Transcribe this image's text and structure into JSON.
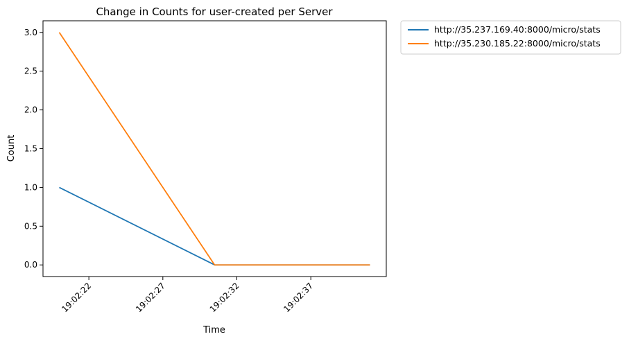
{
  "chart_data": {
    "type": "line",
    "title": "Change in Counts for user-created per Server",
    "xlabel": "Time",
    "ylabel": "Count",
    "x": [
      "19:02:20",
      "19:02:30.5",
      "19:02:41"
    ],
    "x_ticks": [
      "19:02:22",
      "19:02:27",
      "19:02:32",
      "19:02:37"
    ],
    "y_ticks": [
      "0.0",
      "0.5",
      "1.0",
      "1.5",
      "2.0",
      "2.5",
      "3.0"
    ],
    "ylim": [
      -0.15,
      3.15
    ],
    "grid": false,
    "legend_position": "outside-top-right",
    "series": [
      {
        "name": "http://35.237.169.40:8000/micro/stats",
        "color": "#1f77b4",
        "values": [
          1,
          0,
          0
        ]
      },
      {
        "name": "http://35.230.185.22:8000/micro/stats",
        "color": "#ff7f0e",
        "values": [
          3,
          0,
          0
        ]
      }
    ]
  }
}
